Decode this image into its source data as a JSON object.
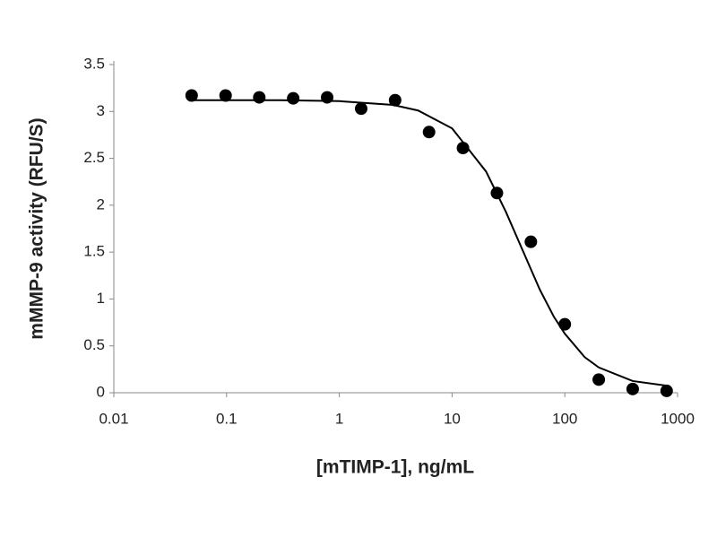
{
  "chart_data": {
    "type": "scatter",
    "x_label": "[mTIMP-1], ng/mL",
    "y_label": "mMMP-9 activity (RFU/S)",
    "x_log": true,
    "xlim": [
      0.01,
      1000
    ],
    "xticks": [
      0.01,
      0.1,
      1,
      10,
      100,
      1000
    ],
    "ylim": [
      0,
      3.5
    ],
    "yticks": [
      0,
      0.5,
      1,
      1.5,
      2,
      2.5,
      3,
      3.5
    ],
    "grid": false,
    "series": [
      {
        "kind": "points",
        "color": "#000000",
        "x": [
          0.049,
          0.098,
          0.195,
          0.39,
          0.78,
          1.5625,
          3.125,
          6.25,
          12.5,
          25,
          50,
          100,
          200,
          400,
          800
        ],
        "values": [
          3.17,
          3.17,
          3.15,
          3.14,
          3.15,
          3.03,
          3.12,
          2.78,
          2.61,
          2.13,
          1.61,
          0.73,
          0.14,
          0.04,
          0.02
        ]
      },
      {
        "kind": "curve",
        "color": "#000000",
        "x": [
          0.049,
          0.1,
          0.3,
          1,
          3,
          5,
          10,
          20,
          30,
          40,
          60,
          80,
          100,
          150,
          200,
          400,
          800
        ],
        "values": [
          3.12,
          3.12,
          3.12,
          3.11,
          3.07,
          3.01,
          2.82,
          2.36,
          1.93,
          1.585,
          1.1,
          0.81,
          0.63,
          0.38,
          0.27,
          0.125,
          0.075
        ]
      }
    ]
  }
}
